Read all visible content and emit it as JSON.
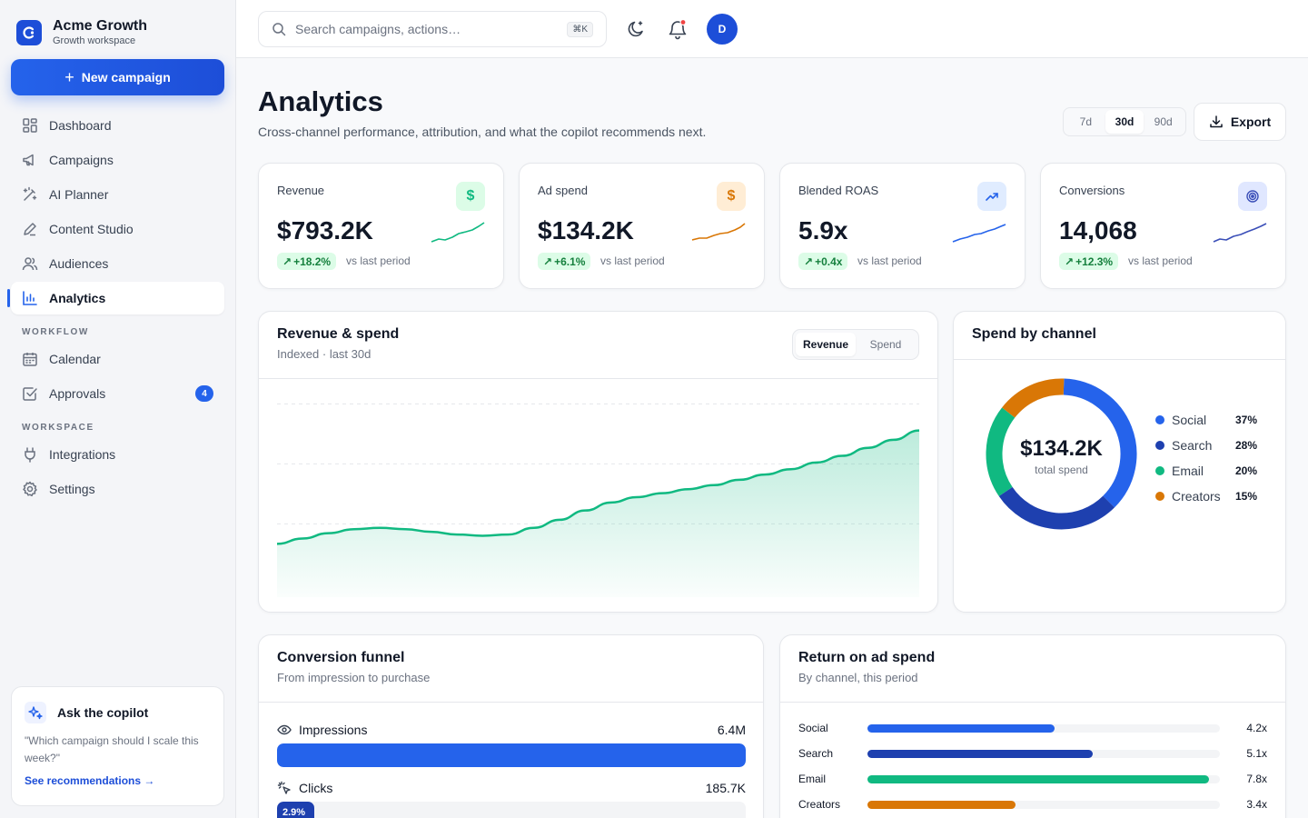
{
  "brand": {
    "name": "Acme Growth",
    "subtitle": "Growth workspace"
  },
  "sidebar": {
    "new_campaign_label": "New campaign",
    "items": [
      {
        "label": "Dashboard",
        "icon": "grid-icon"
      },
      {
        "label": "Campaigns",
        "icon": "megaphone-icon"
      },
      {
        "label": "AI Planner",
        "icon": "wand-icon"
      },
      {
        "label": "Content Studio",
        "icon": "pen-icon"
      },
      {
        "label": "Audiences",
        "icon": "users-icon"
      },
      {
        "label": "Analytics",
        "icon": "bar-chart-icon",
        "active": true
      }
    ],
    "workflow_heading": "WORKFLOW",
    "workflow_items": [
      {
        "label": "Calendar",
        "icon": "calendar-icon"
      },
      {
        "label": "Approvals",
        "icon": "check-square-icon",
        "badge": "4"
      }
    ],
    "workspace_heading": "WORKSPACE",
    "workspace_items": [
      {
        "label": "Integrations",
        "icon": "plug-icon"
      },
      {
        "label": "Settings",
        "icon": "gear-icon"
      }
    ],
    "copilot": {
      "title": "Ask the copilot",
      "quote": "\"Which campaign should I scale this week?\"",
      "link": "See recommendations →"
    }
  },
  "topbar": {
    "search_placeholder": "Search campaigns, actions…",
    "search_shortcut": "⌘K",
    "avatar_initial": "D",
    "icons": [
      "theme-toggle-icon",
      "bell-icon"
    ]
  },
  "header": {
    "title": "Analytics",
    "subtitle": "Cross-channel performance, attribution, and what the copilot recommends next.",
    "ranges": [
      "7d",
      "30d",
      "90d"
    ],
    "selected_range": "30d",
    "export_label": "Export"
  },
  "kpis": [
    {
      "label": "Revenue",
      "value": "$793.2K",
      "delta": "+18.2%",
      "vs": "vs last period",
      "icon": "dollar-icon",
      "icon_glyph": "$",
      "color": "#10b981",
      "icon_bg": "#dcfce7"
    },
    {
      "label": "Ad spend",
      "value": "$134.2K",
      "delta": "+6.1%",
      "vs": "vs last period",
      "icon": "dollar-icon",
      "icon_glyph": "$",
      "color": "#d97706",
      "icon_bg": "#ffedd5"
    },
    {
      "label": "Blended ROAS",
      "value": "5.9x",
      "delta": "+0.4x",
      "vs": "vs last period",
      "icon": "trending-up-icon",
      "color": "#2563eb",
      "icon_bg": "#e0ecff"
    },
    {
      "label": "Conversions",
      "value": "14,068",
      "delta": "+12.3%",
      "vs": "vs last period",
      "icon": "target-icon",
      "color": "#3b4fb8",
      "icon_bg": "#e0e7ff"
    }
  ],
  "revenue_panel": {
    "title": "Revenue & spend",
    "subtitle": "Indexed · last 30d",
    "toggle": [
      "Revenue",
      "Spend"
    ],
    "selected": "Revenue",
    "color": "#10b981"
  },
  "spend_panel": {
    "title": "Spend by channel",
    "total": "$134.2K",
    "total_caption": "total spend"
  },
  "funnel_panel": {
    "title": "Conversion funnel",
    "subtitle": "From impression to purchase",
    "steps": [
      {
        "label": "Impressions",
        "value": "6.4M",
        "icon": "eye-icon",
        "fill": 1.0,
        "pct": ""
      },
      {
        "label": "Clicks",
        "value": "185.7K",
        "icon": "cursor-click-icon",
        "fill": 0.08,
        "pct": "2.9%"
      }
    ]
  },
  "roas_panel": {
    "title": "Return on ad spend",
    "subtitle": "By channel, this period",
    "rows": [
      {
        "label": "Social",
        "value": "4.2x",
        "fraction": 0.53,
        "color": "#2563eb"
      },
      {
        "label": "Search",
        "value": "5.1x",
        "fraction": 0.64,
        "color": "#1e40af"
      },
      {
        "label": "Email",
        "value": "7.8x",
        "fraction": 0.97,
        "color": "#10b981"
      },
      {
        "label": "Creators",
        "value": "3.4x",
        "fraction": 0.42,
        "color": "#d97706"
      }
    ]
  },
  "chart_data": [
    {
      "type": "area",
      "title": "Revenue & spend",
      "subtitle": "Indexed · last 30d",
      "series": [
        {
          "name": "Revenue",
          "values": [
            40,
            44,
            48,
            51,
            52,
            51,
            49,
            47,
            46,
            47,
            52,
            58,
            65,
            71,
            75,
            78,
            81,
            84,
            88,
            92,
            96,
            101,
            106,
            112,
            118,
            125
          ]
        }
      ],
      "ylim": [
        0,
        150
      ],
      "grid": true,
      "color": "#10b981"
    },
    {
      "type": "pie",
      "title": "Spend by channel",
      "categories": [
        "Social",
        "Search",
        "Email",
        "Creators"
      ],
      "values": [
        37,
        28,
        20,
        15
      ],
      "unit": "%",
      "colors": [
        "#2563eb",
        "#1e40af",
        "#10b981",
        "#d97706"
      ]
    },
    {
      "type": "bar",
      "title": "Return on ad spend",
      "categories": [
        "Social",
        "Search",
        "Email",
        "Creators"
      ],
      "values": [
        4.2,
        5.1,
        7.8,
        3.4
      ],
      "unit": "x"
    }
  ]
}
